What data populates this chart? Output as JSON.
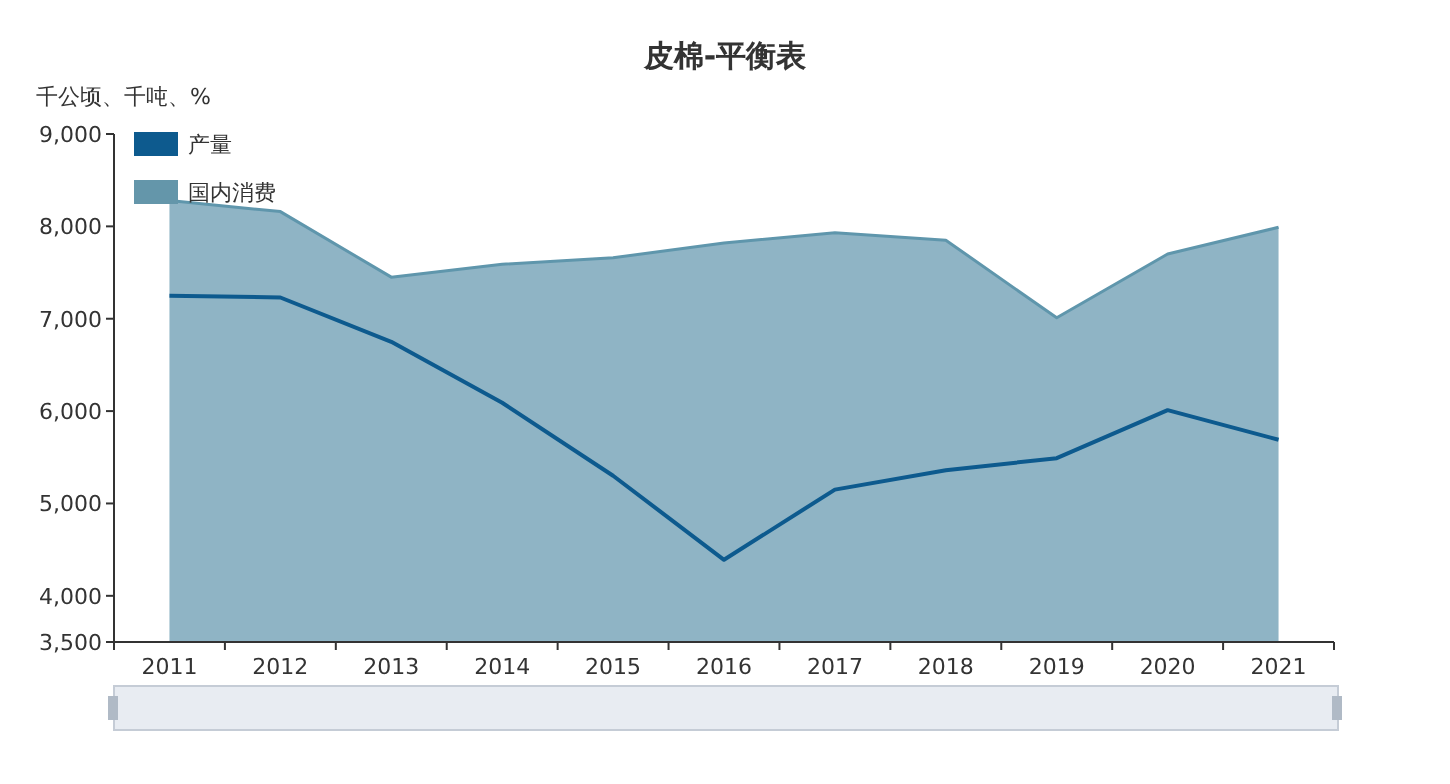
{
  "chart_data": {
    "type": "line",
    "title": "皮棉-平衡表",
    "ylabel": "千公顷、千吨、%",
    "categories": [
      "2011",
      "2012",
      "2013",
      "2014",
      "2015",
      "2016",
      "2017",
      "2018",
      "2019",
      "2020",
      "2021"
    ],
    "series": [
      {
        "name": "产量",
        "type": "line",
        "color": "#0d5a8e",
        "values": [
          7250,
          7230,
          6750,
          6090,
          5300,
          4390,
          5150,
          5360,
          5490,
          6010,
          5690
        ]
      },
      {
        "name": "国内消费",
        "type": "area",
        "color": "#8fb4c5",
        "values": [
          8280,
          8160,
          7450,
          7590,
          7660,
          7820,
          7930,
          7850,
          7010,
          7700,
          7990
        ]
      }
    ],
    "ylim": [
      3500,
      9000
    ],
    "yticks": [
      {
        "value": 3500,
        "label": "3,500"
      },
      {
        "value": 4000,
        "label": "4,000"
      },
      {
        "value": 5000,
        "label": "5,000"
      },
      {
        "value": 6000,
        "label": "6,000"
      },
      {
        "value": 7000,
        "label": "7,000"
      },
      {
        "value": 8000,
        "label": "8,000"
      },
      {
        "value": 9000,
        "label": "9,000"
      }
    ],
    "grid": false,
    "legend": "top left",
    "marker": "none",
    "line_style": "solid"
  }
}
